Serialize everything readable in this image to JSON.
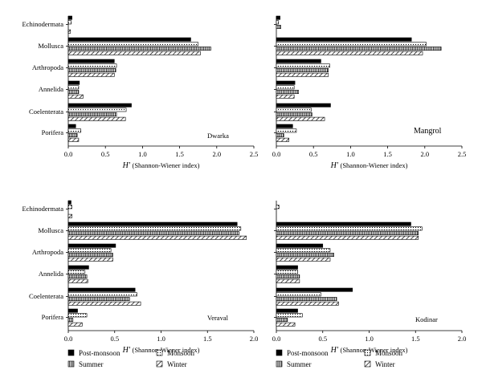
{
  "chart_data": [
    {
      "type": "bar",
      "orientation": "horizontal",
      "panel_label": "Dwarka",
      "xlabel_symbol": "H′",
      "xlabel_text": "(Shannon-Wiener index)",
      "xlim": [
        0,
        2.5
      ],
      "xticks": [
        "0.0",
        "0.5",
        "1.0",
        "1.5",
        "2.0",
        "2.5"
      ],
      "tick_values": [
        0,
        0.5,
        1.0,
        1.5,
        2.0,
        2.5
      ],
      "categories": [
        "Echinodermata",
        "Mollusca",
        "Arthropoda",
        "Annelida",
        "Coelenterata",
        "Porifera"
      ],
      "series": [
        {
          "name": "Post-monsoon",
          "values": [
            0.05,
            1.65,
            0.62,
            0.15,
            0.85,
            0.1
          ]
        },
        {
          "name": "Monsoon",
          "values": [
            0.04,
            1.75,
            0.65,
            0.14,
            0.78,
            0.17
          ]
        },
        {
          "name": "Summer",
          "values": [
            0.0,
            1.92,
            0.64,
            0.14,
            0.65,
            0.12
          ]
        },
        {
          "name": "Winter",
          "values": [
            0.03,
            1.78,
            0.62,
            0.2,
            0.77,
            0.14
          ]
        }
      ],
      "grid": false,
      "legend": "none"
    },
    {
      "type": "bar",
      "orientation": "horizontal",
      "panel_label": "Mangrol",
      "xlabel_symbol": "H′",
      "xlabel_text": "(Shannon-Wiener index)",
      "xlim": [
        0,
        2.5
      ],
      "xticks": [
        "0.0",
        "0.5",
        "1.0",
        "1.5",
        "2.0",
        "2.5"
      ],
      "tick_values": [
        0,
        0.5,
        1.0,
        1.5,
        2.0,
        2.5
      ],
      "categories": [
        "Echinodermata",
        "Mollusca",
        "Arthropoda",
        "Annelida",
        "Coelenterata",
        "Porifera"
      ],
      "series": [
        {
          "name": "Post-monsoon",
          "values": [
            0.05,
            1.82,
            0.6,
            0.25,
            0.73,
            0.22
          ]
        },
        {
          "name": "Monsoon",
          "values": [
            0.03,
            2.02,
            0.72,
            0.24,
            0.47,
            0.27
          ]
        },
        {
          "name": "Summer",
          "values": [
            0.06,
            2.22,
            0.7,
            0.3,
            0.48,
            0.1
          ]
        },
        {
          "name": "Winter",
          "values": [
            0.0,
            1.97,
            0.7,
            0.24,
            0.65,
            0.17
          ]
        }
      ],
      "grid": false,
      "legend": "none"
    },
    {
      "type": "bar",
      "orientation": "horizontal",
      "panel_label": "Veraval",
      "xlabel_symbol": "H′",
      "xlabel_text": "(Shannon-Wiener index)",
      "xlim": [
        0,
        2.0
      ],
      "xticks": [
        "0.0",
        "0.5",
        "1.0",
        "1.5",
        "2.0"
      ],
      "tick_values": [
        0,
        0.5,
        1.0,
        1.5,
        2.0
      ],
      "categories": [
        "Echinodermata",
        "Mollusca",
        "Arthropoda",
        "Annelida",
        "Coelenterata",
        "Porifera"
      ],
      "series": [
        {
          "name": "Post-monsoon",
          "values": [
            0.03,
            1.82,
            0.51,
            0.22,
            0.72,
            0.1
          ]
        },
        {
          "name": "Monsoon",
          "values": [
            0.04,
            1.86,
            0.46,
            0.18,
            0.74,
            0.2
          ]
        },
        {
          "name": "Summer",
          "values": [
            0.0,
            1.84,
            0.48,
            0.2,
            0.66,
            0.05
          ]
        },
        {
          "name": "Winter",
          "values": [
            0.04,
            1.92,
            0.48,
            0.21,
            0.78,
            0.15
          ]
        }
      ],
      "grid": false,
      "legend": "none"
    },
    {
      "type": "bar",
      "orientation": "horizontal",
      "panel_label": "Kodinar",
      "xlabel_symbol": "H′",
      "xlabel_text": "(Shannon-Wiener index)",
      "xlim": [
        0,
        2.0
      ],
      "xticks": [
        "0.0",
        "0.5",
        "1.0",
        "1.5",
        "2.0"
      ],
      "tick_values": [
        0,
        0.5,
        1.0,
        1.5,
        2.0
      ],
      "categories": [
        "Echinodermata",
        "Mollusca",
        "Arthropoda",
        "Annelida",
        "Coelenterata",
        "Porifera"
      ],
      "series": [
        {
          "name": "Post-monsoon",
          "values": [
            0.0,
            1.45,
            0.5,
            0.23,
            0.82,
            0.23
          ]
        },
        {
          "name": "Monsoon",
          "values": [
            0.03,
            1.57,
            0.58,
            0.23,
            0.48,
            0.28
          ]
        },
        {
          "name": "Summer",
          "values": [
            0.0,
            1.53,
            0.62,
            0.25,
            0.65,
            0.12
          ]
        },
        {
          "name": "Winter",
          "values": [
            0.0,
            1.53,
            0.58,
            0.25,
            0.67,
            0.2
          ]
        }
      ],
      "grid": false,
      "legend": "none"
    }
  ],
  "legends": [
    {
      "entries": [
        {
          "name": "Post-monsoon",
          "pattern": "solid"
        },
        {
          "name": "Monsoon",
          "pattern": "dots"
        },
        {
          "name": "Summer",
          "pattern": "vlines"
        },
        {
          "name": "Winter",
          "pattern": "diag"
        }
      ]
    },
    {
      "entries": [
        {
          "name": "Post-monsoon",
          "pattern": "solid"
        },
        {
          "name": "Monsoon",
          "pattern": "dots"
        },
        {
          "name": "Summer",
          "pattern": "vlines"
        },
        {
          "name": "Winter",
          "pattern": "diag"
        }
      ]
    }
  ],
  "colors": {
    "ink": "#000000",
    "background": "#ffffff"
  }
}
